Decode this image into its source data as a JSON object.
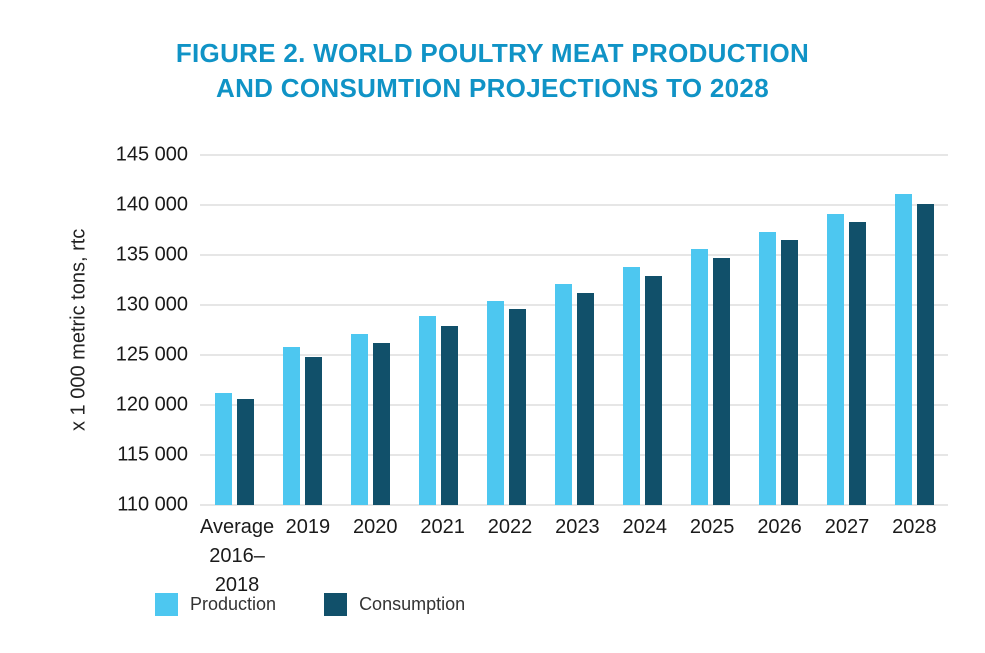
{
  "title": {
    "line1": "FIGURE 2. WORLD POULTRY MEAT PRODUCTION",
    "line2": "AND CONSUMTION PROJECTIONS TO 2028"
  },
  "legend": {
    "production": "Production",
    "consumption": "Consumption"
  },
  "colors": {
    "title": "#1093c6",
    "production": "#4dc7f0",
    "consumption": "#11506a",
    "gridline": "#cccccc",
    "axis_text": "#1a1a1a"
  },
  "chart_data": {
    "type": "bar",
    "title": "FIGURE 2. WORLD POULTRY MEAT PRODUCTION AND CONSUMTION PROJECTIONS TO 2028",
    "xlabel": "",
    "ylabel": "x 1 000 metric tons, rtc",
    "ylim": [
      110000,
      145000
    ],
    "yticks": [
      110000,
      115000,
      120000,
      125000,
      130000,
      135000,
      140000,
      145000
    ],
    "ytick_labels": [
      "110 000",
      "115 000",
      "120 000",
      "125 000",
      "130 000",
      "135 000",
      "140 000",
      "145 000"
    ],
    "categories": [
      "Average\n2016–2018",
      "2019",
      "2020",
      "2021",
      "2022",
      "2023",
      "2024",
      "2025",
      "2026",
      "2027",
      "2028"
    ],
    "series": [
      {
        "name": "Production",
        "color": "#4dc7f0",
        "values": [
          121200,
          125800,
          127100,
          128900,
          130400,
          132100,
          133800,
          135600,
          137300,
          139100,
          141100
        ]
      },
      {
        "name": "Consumption",
        "color": "#11506a",
        "values": [
          120600,
          124800,
          126200,
          127900,
          129600,
          131200,
          132900,
          134700,
          136500,
          138300,
          140100
        ]
      }
    ],
    "grid": true,
    "legend_position": "bottom-left"
  }
}
